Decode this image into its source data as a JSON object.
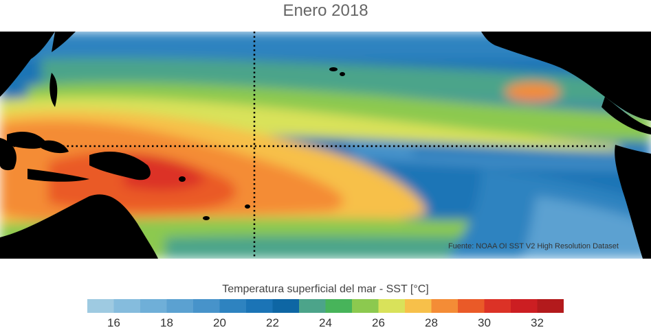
{
  "title": "Enero 2018",
  "source": "Fuente: NOAA OI SST V2 High Resolution Dataset",
  "colorbar": {
    "label": "Temperatura superficial del mar - SST  [°C]",
    "min": 15,
    "max": 33,
    "colors": [
      "#9ecae1",
      "#85bcdd",
      "#6fafd8",
      "#5ba1d1",
      "#4793ca",
      "#2e83c0",
      "#1b74b6",
      "#0e66a4",
      "#4ca48a",
      "#47b45a",
      "#8cc94f",
      "#d9e25a",
      "#f7c04a",
      "#f48c36",
      "#ea5a28",
      "#dc3226",
      "#cc1e22",
      "#b31a1c"
    ],
    "ticks": [
      "16",
      "18",
      "20",
      "22",
      "24",
      "26",
      "28",
      "30",
      "32"
    ],
    "tick_values": [
      16,
      18,
      20,
      22,
      24,
      26,
      28,
      30,
      32
    ]
  },
  "palette": {
    "land": "#000000",
    "dotted_lines": "#000000"
  }
}
